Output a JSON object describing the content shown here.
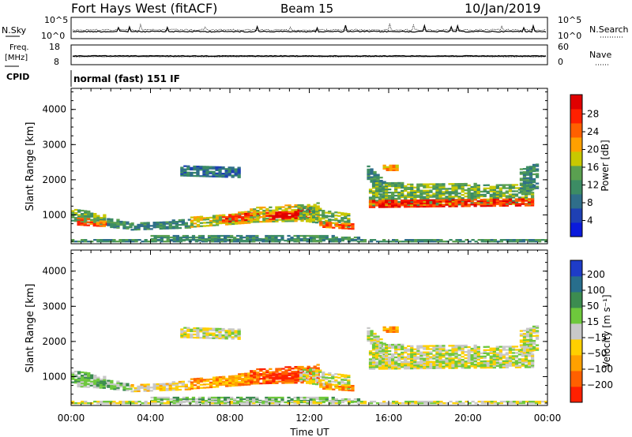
{
  "header": {
    "station": "Fort Hays West (fitACF)",
    "beam": "Beam 15",
    "date": "10/Jan/2019"
  },
  "side_labels": {
    "nsky": "N.Sky",
    "freq_line1": "Freq.",
    "freq_line2": "[MHz]",
    "cpid": "CPID",
    "nsearch": "N.Search",
    "nave": "Nave"
  },
  "cpid_text": "normal (fast) 151 IF",
  "colors": {
    "power_scale": [
      "#0a1adc",
      "#1e40b4",
      "#2f6e8a",
      "#3c8c64",
      "#5aa050",
      "#c8c800",
      "#ffa000",
      "#ff6000",
      "#ff2000",
      "#e00000"
    ],
    "velocity_scale": [
      "#1e3cc8",
      "#286e8c",
      "#3c8c50",
      "#6ec83c",
      "#c8c8c8",
      "#ffd000",
      "#ffa000",
      "#ff6000",
      "#ff2000"
    ]
  },
  "chart_data": [
    {
      "type": "line",
      "panel": "nsky-nsearch",
      "ytick_labels_left": [
        "10^5",
        "10^0"
      ],
      "ytick_labels_right": [
        "10^5",
        "10^0"
      ]
    },
    {
      "type": "line",
      "panel": "freq-nave",
      "ytick_labels_left": [
        "18",
        "8"
      ],
      "ytick_labels_right": [
        "60",
        "0"
      ]
    },
    {
      "type": "heatmap",
      "panel": "power",
      "ylabel": "Slant Range [km]",
      "yticks": [
        1000,
        2000,
        3000,
        4000
      ],
      "ylim": [
        180,
        4600
      ],
      "xlim": [
        0,
        24
      ],
      "colorbar_label": "Power [dB]",
      "colorbar_ticks": [
        "4",
        "8",
        "12",
        "16",
        "20",
        "24",
        "28"
      ]
    },
    {
      "type": "heatmap",
      "panel": "velocity",
      "ylabel": "Slant Range [km]",
      "yticks": [
        1000,
        2000,
        3000,
        4000
      ],
      "ylim": [
        180,
        4600
      ],
      "xlim": [
        0,
        24
      ],
      "colorbar_label": "Velocity [m s⁻¹]",
      "colorbar_ticks": [
        "200",
        "100",
        "50",
        "15",
        "−15",
        "−50",
        "−100",
        "−200"
      ]
    }
  ],
  "xaxis": {
    "label": "Time UT",
    "tick_labels": [
      "00:00",
      "04:00",
      "08:00",
      "12:00",
      "16:00",
      "20:00",
      "00:00"
    ]
  }
}
